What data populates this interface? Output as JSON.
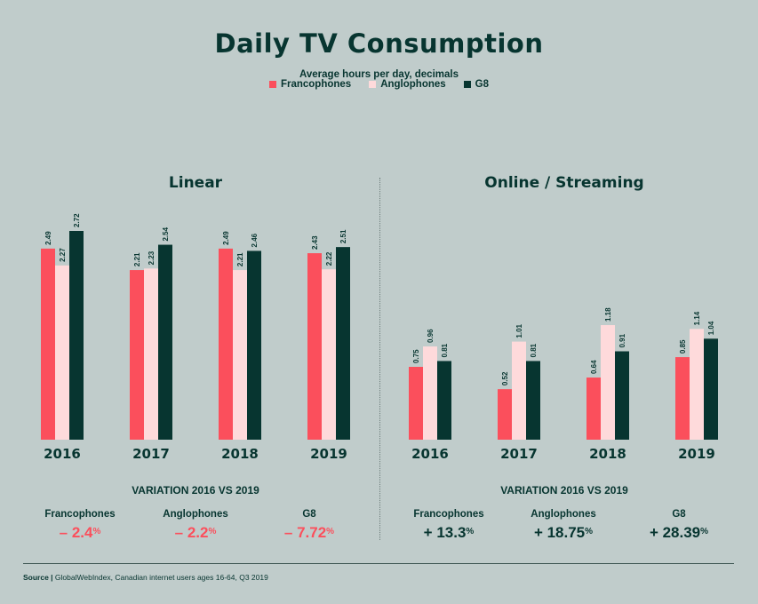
{
  "title": "Daily TV Consumption",
  "subtitle": "Average hours per day, decimals",
  "legend": [
    {
      "label": "Francophones",
      "color": "#fb4f5c"
    },
    {
      "label": "Anglophones",
      "color": "#fedadb"
    },
    {
      "label": "G8",
      "color": "#073530"
    }
  ],
  "chart_data": [
    {
      "type": "bar",
      "title": "Linear",
      "categories": [
        "2016",
        "2017",
        "2018",
        "2019"
      ],
      "series": [
        {
          "name": "Francophones",
          "values": [
            2.49,
            2.21,
            2.49,
            2.43
          ]
        },
        {
          "name": "Anglophones",
          "values": [
            2.27,
            2.23,
            2.21,
            2.22
          ]
        },
        {
          "name": "G8",
          "values": [
            2.72,
            2.54,
            2.46,
            2.51
          ]
        }
      ],
      "value_labels": [
        [
          "2.49",
          "2.21",
          "2.49",
          "2.43"
        ],
        [
          "2.27",
          "2.23",
          "2.21",
          "2.22"
        ],
        [
          "2.72",
          "2.54",
          "2.46",
          "2.51"
        ]
      ],
      "ylim": [
        0,
        2.72
      ],
      "grid": false
    },
    {
      "type": "bar",
      "title": "Online / Streaming",
      "categories": [
        "2016",
        "2017",
        "2018",
        "2019"
      ],
      "series": [
        {
          "name": "Francophones",
          "values": [
            0.75,
            0.52,
            0.64,
            0.85
          ]
        },
        {
          "name": "Anglophones",
          "values": [
            0.96,
            1.01,
            1.18,
            1.14
          ]
        },
        {
          "name": "G8",
          "values": [
            0.81,
            0.81,
            0.91,
            1.04
          ]
        }
      ],
      "value_labels": [
        [
          "0.75",
          "0.52",
          "0.64",
          "0.85"
        ],
        [
          "0.96",
          "1.01",
          "1.18",
          "1.14"
        ],
        [
          "0.81",
          "0.81",
          "0.91",
          "1.04"
        ]
      ],
      "ylim": [
        0,
        1.18
      ],
      "grid": false
    }
  ],
  "variation": [
    {
      "title": "VARIATION 2016 VS 2019",
      "items": [
        {
          "label": "Francophones",
          "value": "– 2.4",
          "unit": "%"
        },
        {
          "label": "Anglophones",
          "value": "– 2.2",
          "unit": "%"
        },
        {
          "label": "G8",
          "value": "– 7.72",
          "unit": "%"
        }
      ],
      "color": "#fb4f5c"
    },
    {
      "title": "VARIATION 2016 VS 2019",
      "items": [
        {
          "label": "Francophones",
          "value": "+ 13.3",
          "unit": "%"
        },
        {
          "label": "Anglophones",
          "value": "+ 18.75",
          "unit": "%"
        },
        {
          "label": "G8",
          "value": "+ 28.39",
          "unit": "%"
        }
      ],
      "color": "#073530"
    }
  ],
  "source": {
    "prefix": "Source |",
    "text": " GlobalWebIndex, Canadian internet users ages 16-64, Q3 2019"
  }
}
